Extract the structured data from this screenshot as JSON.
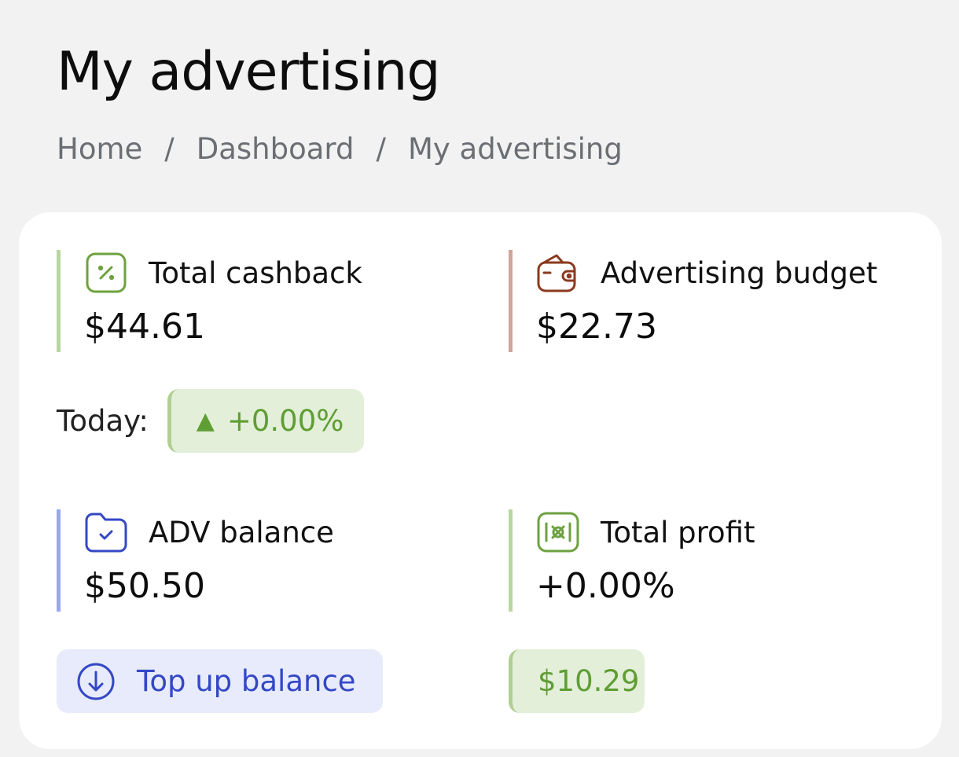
{
  "header": {
    "title": "My advertising",
    "breadcrumb": [
      "Home",
      "Dashboard",
      "My advertising"
    ]
  },
  "stats": {
    "cashback": {
      "label": "Total cashback",
      "value": "$44.61",
      "icon": "percent-badge-icon"
    },
    "budget": {
      "label": "Advertising budget",
      "value": "$22.73",
      "icon": "wallet-icon"
    },
    "adv_balance": {
      "label": "ADV balance",
      "value": "$50.50",
      "icon": "folder-check-icon"
    },
    "profit": {
      "label": "Total profit",
      "value": "+0.00%",
      "icon": "money-icon"
    }
  },
  "today": {
    "label": "Today:",
    "arrow": "▲",
    "change": "+0.00%"
  },
  "actions": {
    "topup_label": "Top up balance",
    "profit_amount": "$10.29"
  },
  "colors": {
    "green": "#5f9e33",
    "green_border": "#b9d6a1",
    "brown": "#8b3a1e",
    "brown_border": "#cfa59b",
    "blue": "#3448c5",
    "blue_border": "#9aa6ef"
  }
}
